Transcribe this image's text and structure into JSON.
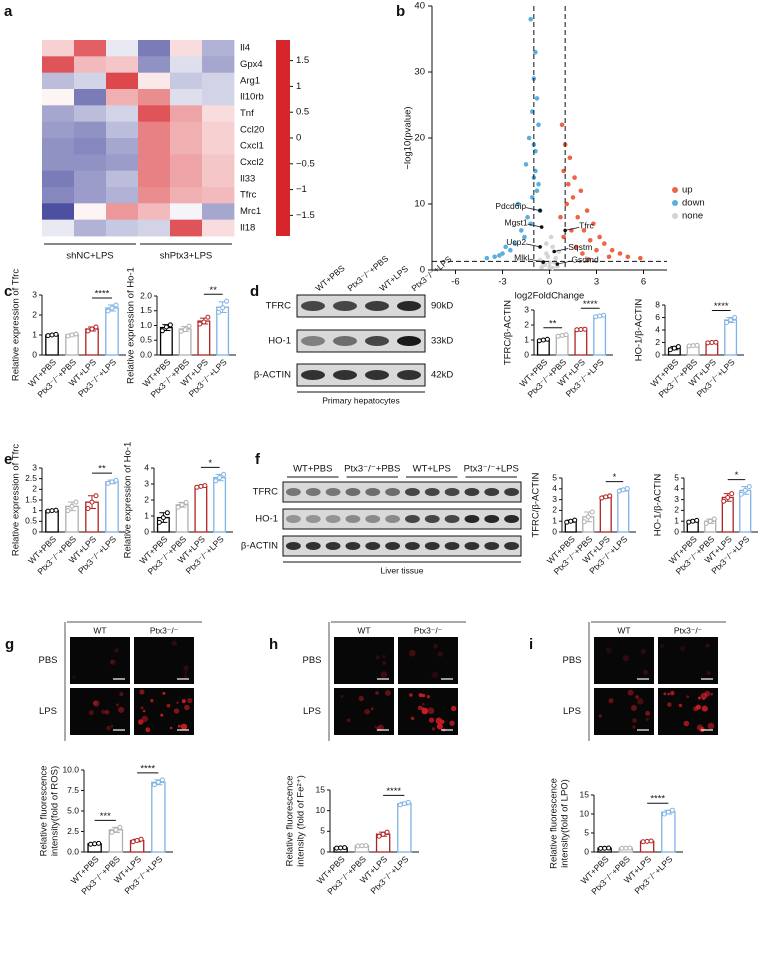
{
  "chart_data": [
    {
      "type": "heatmap",
      "panel": "a",
      "rows": [
        "Il4",
        "Gpx4",
        "Arg1",
        "Il10rb",
        "Tnf",
        "Ccl20",
        "Cxcl1",
        "Cxcl2",
        "Il33",
        "Tfrc",
        "Mrc1",
        "Il18"
      ],
      "column_groups": [
        {
          "name": "shNC+LPS",
          "columns": 3
        },
        {
          "name": "shPtx3+LPS",
          "columns": 3
        }
      ],
      "values": [
        [
          0.4,
          1.4,
          -0.2,
          -1.2,
          0.3,
          -0.7
        ],
        [
          1.5,
          0.6,
          0.5,
          -1.0,
          -0.3,
          -0.8
        ],
        [
          -0.6,
          -0.4,
          1.6,
          0.2,
          -0.5,
          -0.4
        ],
        [
          0.1,
          -1.2,
          0.7,
          1.0,
          -0.3,
          -0.4
        ],
        [
          -0.8,
          -0.6,
          -0.4,
          1.5,
          0.8,
          0.3
        ],
        [
          -0.9,
          -1.0,
          -0.6,
          1.1,
          0.7,
          0.4
        ],
        [
          -1.0,
          -1.1,
          -0.8,
          1.1,
          0.7,
          0.4
        ],
        [
          -1.0,
          -1.0,
          -0.9,
          1.1,
          0.8,
          0.5
        ],
        [
          -1.2,
          -0.9,
          -0.6,
          1.1,
          0.8,
          0.5
        ],
        [
          -1.1,
          -0.9,
          -0.7,
          1.0,
          0.7,
          0.6
        ],
        [
          -1.6,
          0.1,
          0.9,
          0.6,
          -0.1,
          -0.8
        ],
        [
          -0.2,
          -0.7,
          -0.5,
          -0.4,
          1.5,
          0.3
        ]
      ],
      "zlim": [
        -1.9,
        1.9
      ],
      "colormap": [
        "#2c2f8e",
        "#ffffff",
        "#d7262b"
      ],
      "colorbar_ticks": [
        1.5,
        1,
        0.5,
        0,
        {
          "value": -0.5,
          "label": "−0.5"
        },
        {
          "value": -1,
          "label": "−1"
        },
        {
          "value": -1.5,
          "label": "−1.5"
        }
      ]
    },
    {
      "type": "scatter",
      "panel": "b",
      "xlabel": "log2FoldChange",
      "ylabel": "−log10(pvalue)",
      "xlim": [
        -7.5,
        7.5
      ],
      "ylim": [
        0,
        40
      ],
      "xticks": [
        -6,
        -3,
        0,
        3,
        6
      ],
      "yticks": [
        0,
        10,
        20,
        30,
        40
      ],
      "vlines": [
        -1,
        1
      ],
      "hline": 1.3,
      "series": [
        {
          "name": "up",
          "color": "#ec6446",
          "x": [
            0.8,
            1.0,
            1.3,
            1.6,
            2.0,
            2.4,
            2.8,
            3.2,
            3.5,
            4.0,
            4.5,
            5.0,
            5.8,
            0.9,
            1.2,
            1.5,
            1.8,
            2.2,
            2.6,
            3.0,
            1.1,
            0.7,
            1.4,
            2.1,
            3.8,
            2.5,
            1.7,
            0.9
          ],
          "values": [
            22,
            19,
            17,
            14,
            12,
            9,
            7,
            5,
            4,
            3,
            2.5,
            2,
            1.8,
            15,
            13,
            11,
            8,
            6,
            4.5,
            3,
            10,
            8,
            6,
            2.5,
            2,
            1.6,
            3.5,
            5
          ]
        },
        {
          "name": "down",
          "color": "#5aaee0",
          "x": [
            -1.2,
            -0.9,
            -1.0,
            -0.8,
            -1.1,
            -0.7,
            -1.3,
            -0.9,
            -1.5,
            -1.0,
            -0.8,
            -2.0,
            -2.5,
            -3.0,
            -3.5,
            -4.0,
            -2.2,
            -1.8,
            -1.4,
            -0.6,
            -1.1,
            -0.9,
            -2.8,
            -3.2,
            -1.6,
            -1.2,
            -0.7,
            -1.0
          ],
          "values": [
            38,
            33,
            29,
            26,
            24,
            22,
            20,
            18,
            16,
            14,
            12,
            10,
            3,
            2.5,
            2,
            1.8,
            4,
            6,
            8,
            9,
            11,
            15,
            3.5,
            2.2,
            5,
            7,
            13,
            19
          ]
        },
        {
          "name": "none",
          "color": "#d4d4d4",
          "x": [
            -0.4,
            -0.2,
            0,
            0.2,
            0.4,
            -0.3,
            0.1,
            0.3,
            -0.1,
            0.5,
            -0.5,
            0.6,
            -0.6,
            0.0,
            0.2,
            -0.2
          ],
          "values": [
            1.0,
            2.5,
            0.5,
            3.5,
            1.8,
            0.8,
            5,
            1.2,
            2.0,
            0.6,
            0.4,
            2.8,
            1.5,
            1.1,
            0.3,
            4.0
          ]
        }
      ],
      "labeled_genes": [
        {
          "label": "Pdcd6ip",
          "x": -0.6,
          "y": 9
        },
        {
          "label": "Mgst1",
          "x": -0.5,
          "y": 6.5
        },
        {
          "label": "Tfrc",
          "x": 1.0,
          "y": 6
        },
        {
          "label": "Ucp2",
          "x": -0.6,
          "y": 3.5
        },
        {
          "label": "Sqstm",
          "x": 0.3,
          "y": 2.8
        },
        {
          "label": "Mlkl",
          "x": -0.4,
          "y": 1.2
        },
        {
          "label": "Gsdmd",
          "x": 0.5,
          "y": 0.9
        }
      ]
    },
    {
      "type": "bar",
      "panel": "c",
      "ylabel": "Relative expression of Tfrc",
      "categories": [
        "WT+PBS",
        "Ptx3⁻/⁻+PBS",
        "WT+LPS",
        "Ptx3⁻/⁻+LPS"
      ],
      "colors": [
        "#000000",
        "#b0b0b0",
        "#b22222",
        "#7fb2e5"
      ],
      "values": [
        1.0,
        1.0,
        1.3,
        2.35
      ],
      "errors": [
        0.04,
        0.05,
        0.1,
        0.15
      ],
      "points": [
        [
          0.97,
          1.0,
          1.03
        ],
        [
          0.95,
          1.0,
          1.05
        ],
        [
          1.2,
          1.3,
          1.4
        ],
        [
          2.2,
          2.35,
          2.5
        ]
      ],
      "ylim": [
        0,
        3
      ],
      "yticks": [
        0,
        1,
        2,
        3
      ],
      "significance": [
        {
          "label": "****",
          "between": [
            "WT+LPS",
            "Ptx3⁻/⁻+LPS"
          ]
        }
      ]
    },
    {
      "type": "bar",
      "ylabel": "Relative expression of Ho-1",
      "categories": [
        "WT+PBS",
        "Ptx3⁻/⁻+PBS",
        "WT+LPS",
        "Ptx3⁻/⁻+LPS"
      ],
      "colors": [
        "#000000",
        "#b0b0b0",
        "#b22222",
        "#7fb2e5"
      ],
      "values": [
        0.93,
        0.88,
        1.15,
        1.62
      ],
      "errors": [
        0.1,
        0.08,
        0.1,
        0.18
      ],
      "points": [
        [
          0.82,
          0.95,
          1.02
        ],
        [
          0.8,
          0.86,
          0.98
        ],
        [
          1.05,
          1.12,
          1.28
        ],
        [
          1.45,
          1.6,
          1.82
        ]
      ],
      "ylim": [
        0,
        2
      ],
      "yticks": [
        {
          "value": 0,
          "label": "0.0"
        },
        0.5,
        {
          "value": 1,
          "label": "1.0"
        },
        1.5,
        {
          "value": 2,
          "label": "2.0"
        }
      ],
      "significance": [
        {
          "label": "**",
          "between": [
            "WT+LPS",
            "Ptx3⁻/⁻+LPS"
          ]
        }
      ]
    },
    {
      "type": "bar",
      "ylabel": "TFRC/β-ACTIN",
      "categories": [
        "WT+PBS",
        "Ptx3⁻/⁻+PBS",
        "WT+LPS",
        "Ptx3⁻/⁻+LPS"
      ],
      "colors": [
        "#000000",
        "#b0b0b0",
        "#b22222",
        "#7fb2e5"
      ],
      "values": [
        1.0,
        1.3,
        1.7,
        2.6
      ],
      "errors": [
        0.06,
        0.05,
        0.03,
        0.05
      ],
      "points": [
        [
          0.95,
          1.0,
          1.05
        ],
        [
          1.25,
          1.3,
          1.35
        ],
        [
          1.68,
          1.7,
          1.72
        ],
        [
          2.55,
          2.6,
          2.65
        ]
      ],
      "ylim": [
        0,
        3
      ],
      "yticks": [
        0,
        1,
        2,
        3
      ],
      "significance": [
        {
          "label": "**",
          "between": [
            "WT+PBS",
            "Ptx3⁻/⁻+PBS"
          ]
        },
        {
          "label": "****",
          "between": [
            "WT+LPS",
            "Ptx3⁻/⁻+LPS"
          ]
        }
      ]
    },
    {
      "type": "bar",
      "ylabel": "HO-1/β-ACTIN",
      "categories": [
        "WT+PBS",
        "Ptx3⁻/⁻+PBS",
        "WT+LPS",
        "Ptx3⁻/⁻+LPS"
      ],
      "colors": [
        "#000000",
        "#b0b0b0",
        "#b22222",
        "#7fb2e5"
      ],
      "values": [
        1.1,
        1.5,
        2.0,
        5.6
      ],
      "errors": [
        0.25,
        0.05,
        0.05,
        0.4
      ],
      "points": [
        [
          0.85,
          1.1,
          1.35
        ],
        [
          1.45,
          1.5,
          1.55
        ],
        [
          1.95,
          2.0,
          2.05
        ],
        [
          5.2,
          5.6,
          6.0
        ]
      ],
      "ylim": [
        0,
        8
      ],
      "yticks": [
        0,
        2,
        4,
        6,
        8
      ],
      "significance": [
        {
          "label": "****",
          "between": [
            "WT+LPS",
            "Ptx3⁻/⁻+LPS"
          ]
        }
      ]
    },
    {
      "type": "bar",
      "panel": "e",
      "ylabel": "Relative  expression of Tfrc",
      "categories": [
        "WT+PBS",
        "Ptx3⁻/⁻+PBS",
        "WT+LPS",
        "Ptx3⁻/⁻+LPS"
      ],
      "colors": [
        "#000000",
        "#b0b0b0",
        "#b22222",
        "#7fb2e5"
      ],
      "values": [
        1.0,
        1.2,
        1.4,
        2.35
      ],
      "errors": [
        0.02,
        0.2,
        0.3,
        0.08
      ],
      "points": [
        [
          0.98,
          1.0,
          1.02
        ],
        [
          1.0,
          1.2,
          1.4
        ],
        [
          1.1,
          1.4,
          1.7
        ],
        [
          2.28,
          2.35,
          2.42
        ]
      ],
      "ylim": [
        0,
        3
      ],
      "yticks": [
        0,
        0.5,
        1,
        1.5,
        2,
        2.5,
        3
      ],
      "significance": [
        {
          "label": "**",
          "between": [
            "WT+LPS",
            "Ptx3⁻/⁻+LPS"
          ]
        }
      ]
    },
    {
      "type": "bar",
      "ylabel": "Relative expression of Ho-1",
      "categories": [
        "WT+PBS",
        "Ptx3⁻/⁻+PBS",
        "WT+LPS",
        "Ptx3⁻/⁻+LPS"
      ],
      "colors": [
        "#000000",
        "#b0b0b0",
        "#b22222",
        "#7fb2e5"
      ],
      "values": [
        0.9,
        1.7,
        2.85,
        3.4
      ],
      "errors": [
        0.3,
        0.15,
        0.05,
        0.2
      ],
      "points": [
        [
          0.6,
          0.9,
          1.2
        ],
        [
          1.55,
          1.7,
          1.85
        ],
        [
          2.8,
          2.85,
          2.9
        ],
        [
          3.2,
          3.4,
          3.6
        ]
      ],
      "ylim": [
        0,
        4
      ],
      "yticks": [
        0,
        1,
        2,
        3,
        4
      ],
      "significance": [
        {
          "label": "*",
          "between": [
            "WT+LPS",
            "Ptx3⁻/⁻+LPS"
          ]
        }
      ]
    },
    {
      "type": "bar",
      "ylabel": "TFRC/β-ACTIN",
      "categories": [
        "WT+PBS",
        "Ptx3⁻/⁻+PBS",
        "WT+LPS",
        "Ptx3⁻/⁻+LPS"
      ],
      "colors": [
        "#000000",
        "#b0b0b0",
        "#b22222",
        "#7fb2e5"
      ],
      "values": [
        1.0,
        1.4,
        3.25,
        3.9
      ],
      "errors": [
        0.1,
        0.45,
        0.1,
        0.12
      ],
      "points": [
        [
          0.9,
          1.0,
          1.1
        ],
        [
          0.95,
          1.4,
          1.85
        ],
        [
          3.15,
          3.25,
          3.35
        ],
        [
          3.78,
          3.9,
          4.02
        ]
      ],
      "ylim": [
        0,
        5
      ],
      "yticks": [
        0,
        1,
        2,
        3,
        4,
        5
      ],
      "significance": [
        {
          "label": "*",
          "between": [
            "WT+LPS",
            "Ptx3⁻/⁻+LPS"
          ]
        }
      ]
    },
    {
      "type": "bar",
      "ylabel": "HO-1/β-ACTIN",
      "categories": [
        "WT+PBS",
        "Ptx3⁻/⁻+PBS",
        "WT+LPS",
        "Ptx3⁻/⁻+LPS"
      ],
      "colors": [
        "#000000",
        "#b0b0b0",
        "#b22222",
        "#7fb2e5"
      ],
      "values": [
        1.0,
        1.0,
        3.2,
        3.85
      ],
      "errors": [
        0.08,
        0.2,
        0.35,
        0.35
      ],
      "points": [
        [
          0.92,
          1.0,
          1.08
        ],
        [
          0.8,
          1.0,
          1.2
        ],
        [
          2.85,
          3.2,
          3.55
        ],
        [
          3.5,
          3.85,
          4.2
        ]
      ],
      "ylim": [
        0,
        5
      ],
      "yticks": [
        0,
        1,
        2,
        3,
        4,
        5
      ],
      "significance": [
        {
          "label": "*",
          "between": [
            "WT+LPS",
            "Ptx3⁻/⁻+LPS"
          ]
        }
      ]
    },
    {
      "type": "bar",
      "ylabel": [
        "Relative fluorescence",
        "intensity(fold of ROS)"
      ],
      "categories": [
        "WT+PBS",
        "Ptx3⁻/⁻+PBS",
        "WT+LPS",
        "Ptx3⁻/⁻+LPS"
      ],
      "colors": [
        "#000000",
        "#b0b0b0",
        "#b22222",
        "#7fb2e5"
      ],
      "values": [
        1.0,
        2.7,
        1.4,
        8.5
      ],
      "errors": [
        0.05,
        0.3,
        0.15,
        0.3
      ],
      "points": [
        [
          0.95,
          1.0,
          1.05
        ],
        [
          2.4,
          2.7,
          3.0
        ],
        [
          1.25,
          1.4,
          1.55
        ],
        [
          8.2,
          8.5,
          8.8
        ]
      ],
      "ylim": [
        0,
        10
      ],
      "yticks": [
        {
          "value": 0,
          "label": "0.0"
        },
        2.5,
        {
          "value": 5,
          "label": "5.0"
        },
        7.5,
        {
          "value": 10,
          "label": "10.0"
        }
      ],
      "significance": [
        {
          "label": "***",
          "between": [
            "WT+PBS",
            "Ptx3⁻/⁻+PBS"
          ]
        },
        {
          "label": "****",
          "between": [
            "WT+LPS",
            "Ptx3⁻/⁻+LPS"
          ]
        }
      ]
    },
    {
      "type": "bar",
      "ylabel": [
        "Relative fluorescence",
        "intensity (fold of Fe²⁺)"
      ],
      "categories": [
        "WT+PBS",
        "Ptx3⁻/⁻+PBS",
        "WT+LPS",
        "Ptx3⁻/⁻+LPS"
      ],
      "colors": [
        "#000000",
        "#b0b0b0",
        "#b22222",
        "#7fb2e5"
      ],
      "values": [
        1.0,
        1.5,
        4.3,
        11.7
      ],
      "errors": [
        0.05,
        0.05,
        0.5,
        0.3
      ],
      "points": [
        [
          0.95,
          1.0,
          1.05
        ],
        [
          1.45,
          1.5,
          1.55
        ],
        [
          3.8,
          4.3,
          4.8
        ],
        [
          11.4,
          11.7,
          12.0
        ]
      ],
      "ylim": [
        0,
        15
      ],
      "yticks": [
        0,
        5,
        10,
        15
      ],
      "significance": [
        {
          "label": "****",
          "between": [
            "WT+LPS",
            "Ptx3⁻/⁻+LPS"
          ]
        }
      ]
    },
    {
      "type": "bar",
      "ylabel": [
        "Relative fluorescence",
        "intensity(fold of LPO)"
      ],
      "categories": [
        "WT+PBS",
        "Ptx3⁻/⁻+PBS",
        "WT+LPS",
        "Ptx3⁻/⁻+LPS"
      ],
      "colors": [
        "#000000",
        "#b0b0b0",
        "#b22222",
        "#7fb2e5"
      ],
      "values": [
        1.0,
        1.0,
        2.8,
        10.5
      ],
      "errors": [
        0.05,
        0.05,
        0.1,
        0.5
      ],
      "points": [
        [
          0.95,
          1.0,
          1.05
        ],
        [
          0.95,
          1.0,
          1.05
        ],
        [
          2.7,
          2.8,
          2.9
        ],
        [
          10.0,
          10.5,
          11.0
        ]
      ],
      "ylim": [
        0,
        15
      ],
      "yticks": [
        0,
        5,
        10,
        15
      ],
      "significance": [
        {
          "label": "****",
          "between": [
            "WT+LPS",
            "Ptx3⁻/⁻+LPS"
          ]
        }
      ]
    }
  ],
  "blots": [
    {
      "panel": "d",
      "lanes": [
        "WT+PBS",
        "Ptx3⁻/⁻+PBS",
        "WT+LPS",
        "Ptx3⁻/⁻+LPS"
      ],
      "rows": [
        {
          "name": "TFRC",
          "size": "90kD"
        },
        {
          "name": "HO-1",
          "size": "33kD"
        },
        {
          "name": "β-ACTIN",
          "size": "42kD"
        }
      ],
      "caption": "Primary hepatocytes"
    },
    {
      "panel": "f",
      "groups": [
        "WT+PBS",
        "Ptx3⁻/⁻+PBS",
        "WT+LPS",
        "Ptx3⁻/⁻+LPS"
      ],
      "rows": [
        {
          "name": "TFRC"
        },
        {
          "name": "HO-1"
        },
        {
          "name": "β-ACTIN"
        }
      ],
      "caption": "Liver tissue"
    }
  ],
  "micrographs": [
    {
      "panel": "g",
      "columns": [
        "WT",
        "Ptx3⁻/⁻"
      ],
      "rows": [
        "PBS",
        "LPS"
      ]
    },
    {
      "panel": "h",
      "columns": [
        "WT",
        "Ptx3⁻/⁻"
      ],
      "rows": [
        "PBS",
        "LPS"
      ]
    },
    {
      "panel": "i",
      "columns": [
        "WT",
        "Ptx3⁻/⁻"
      ],
      "rows": [
        "PBS",
        "LPS"
      ]
    }
  ]
}
